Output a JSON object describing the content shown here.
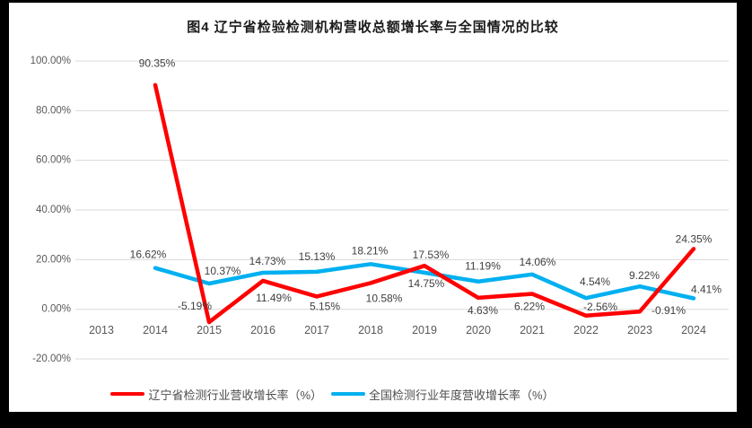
{
  "title": "图4 辽宁省检验检测机构营收总额增长率与全国情况的比较",
  "chart_data": {
    "type": "line",
    "title": "图4 辽宁省检验检测机构营收总额增长率与全国情况的比较",
    "categories": [
      "2013",
      "2014",
      "2015",
      "2016",
      "2017",
      "2018",
      "2019",
      "2020",
      "2021",
      "2022",
      "2023",
      "2024"
    ],
    "series": [
      {
        "name": "辽宁省检测行业营收增长率（%）",
        "color": "#FF0000",
        "values": [
          null,
          90.35,
          -5.19,
          11.49,
          5.15,
          10.58,
          17.53,
          4.63,
          6.22,
          -2.56,
          -0.91,
          24.35
        ]
      },
      {
        "name": "全国检测行业年度营收增长率（%）",
        "color": "#00B0F0",
        "values": [
          null,
          16.62,
          10.37,
          14.73,
          15.13,
          18.21,
          14.75,
          11.19,
          14.06,
          4.54,
          9.22,
          4.41
        ]
      }
    ],
    "y_ticks": [
      {
        "label": "100.00%",
        "value": 100
      },
      {
        "label": "80.00%",
        "value": 80
      },
      {
        "label": "60.00%",
        "value": 60
      },
      {
        "label": "40.00%",
        "value": 40
      },
      {
        "label": "20.00%",
        "value": 20
      },
      {
        "label": "0.00%",
        "value": 0
      },
      {
        "label": "-20.00%",
        "value": -20
      }
    ],
    "ylim": [
      -20,
      100
    ],
    "xlabel": "",
    "ylabel": "",
    "grid": true,
    "data_labels": true,
    "label_format": "0.00%",
    "legend_position": "bottom"
  },
  "colors": {
    "grid": "#D9D9D9",
    "axis_text": "#595959",
    "data_label": "#3F3F3F",
    "frame": "#000000",
    "background": "#FFFFFF"
  }
}
